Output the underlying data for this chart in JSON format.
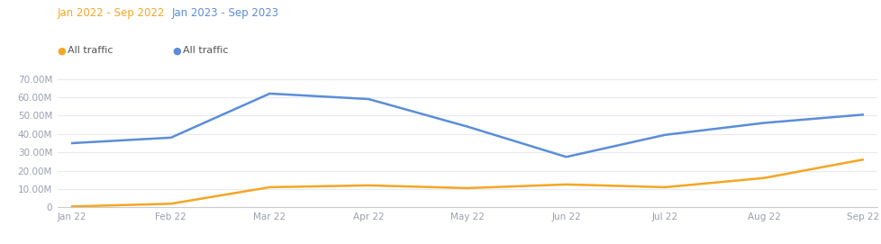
{
  "x_labels": [
    "Jan 22",
    "Feb 22",
    "Mar 22",
    "Apr 22",
    "May 22",
    "Jun 22",
    "Jul 22",
    "Aug 22",
    "Sep 22"
  ],
  "x_values": [
    0,
    1,
    2,
    3,
    4,
    5,
    6,
    7,
    8
  ],
  "orange_values": [
    0.5,
    2.0,
    11.0,
    12.0,
    10.5,
    12.5,
    11.0,
    16.0,
    26.0
  ],
  "blue_values": [
    35.0,
    38.0,
    62.0,
    59.0,
    44.0,
    27.5,
    39.5,
    46.0,
    50.5
  ],
  "orange_color": "#F5A623",
  "blue_color": "#5B8DD9",
  "legend1_period": "Jan 2022 - Sep 2022",
  "legend2_period": "Jan 2023 - Sep 2023",
  "legend1_color": "#F5A623",
  "legend2_color": "#5B8DD9",
  "legend_label": "All traffic",
  "legend_text_color": "#555555",
  "ylim": [
    0,
    75
  ],
  "yticks": [
    0,
    10,
    20,
    30,
    40,
    50,
    60,
    70
  ],
  "ytick_labels": [
    "0",
    "10.00M",
    "20.00M",
    "30.00M",
    "40.00M",
    "50.00M",
    "60.00M",
    "70.00M"
  ],
  "bg_color": "#ffffff",
  "grid_color": "#e8eaf0",
  "axis_label_color": "#9aa0b0",
  "line_width": 1.8,
  "marker_size": 4.5
}
